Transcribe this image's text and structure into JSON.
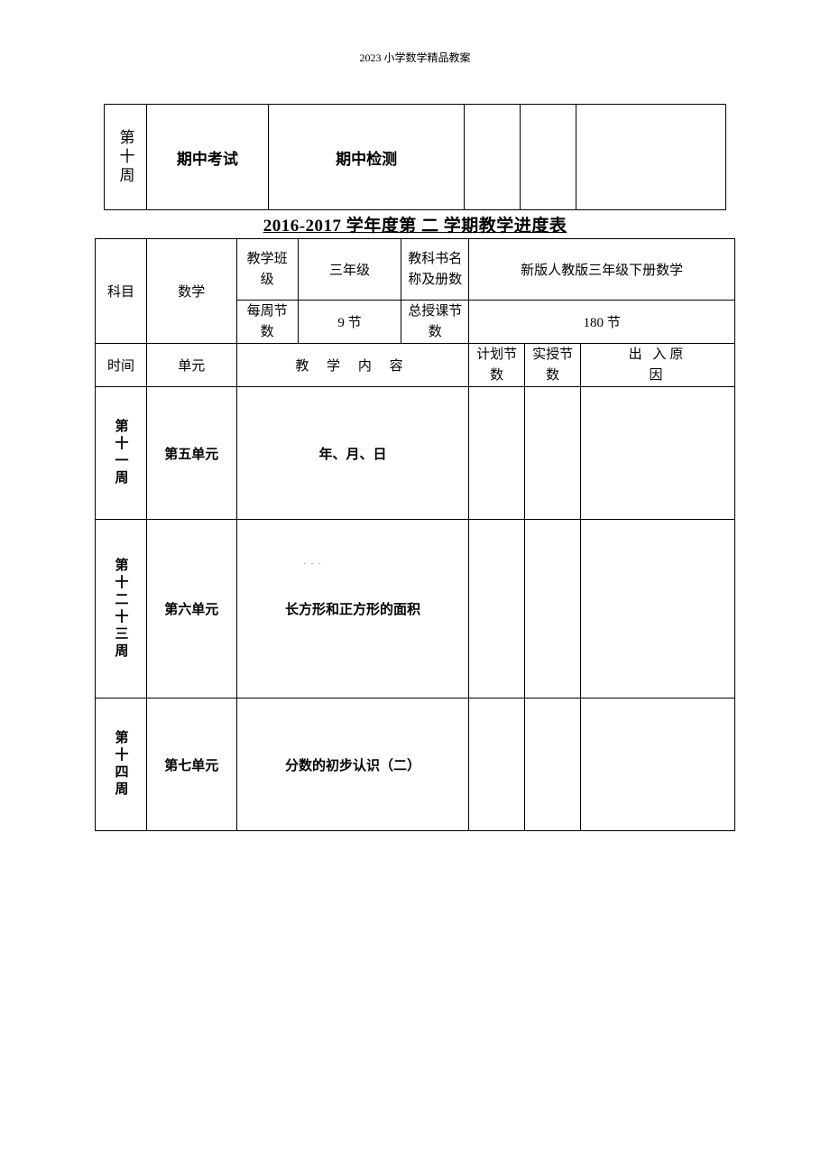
{
  "header": {
    "text": "2023 小学数学精品教案"
  },
  "top_table": {
    "rows": [
      {
        "week": "第十周",
        "name": "期中考试",
        "content": "期中检测",
        "planned": "",
        "actual": "",
        "reason": ""
      }
    ]
  },
  "title": {
    "text": "2016-2017 学年度第 二 学期教学进度表"
  },
  "main_table": {
    "header": {
      "subject_label": "科目",
      "subject_value": "数学",
      "class_label": "教学班级",
      "class_value": "三年级",
      "textbook_label": "教科书名称及册数",
      "textbook_value": "新版人教版三年级下册数学",
      "weekly_label": "每周节数",
      "weekly_value": "9 节",
      "total_label": "总授课节数",
      "total_value": "180 节"
    },
    "columns": {
      "time": "时间",
      "unit": "单元",
      "content": "教 学 内 容",
      "planned": "计划节数",
      "actual": "实授节数",
      "reason": "出 入原 因"
    },
    "rows": [
      {
        "week": "第十一周",
        "unit": "第五单元",
        "content": "年、月、日",
        "planned": "",
        "actual": "",
        "reason": "",
        "height": "regular"
      },
      {
        "week": "第十二十三周",
        "unit": "第六单元",
        "content": "长方形和正方形的面积",
        "planned": "",
        "actual": "",
        "reason": "",
        "height": "tall"
      },
      {
        "week": "第十四周",
        "unit": "第七单元",
        "content": "分数的初步认识（二）",
        "planned": "",
        "actual": "",
        "reason": "",
        "height": "regular"
      }
    ]
  },
  "watermark": {
    "text": "···"
  }
}
